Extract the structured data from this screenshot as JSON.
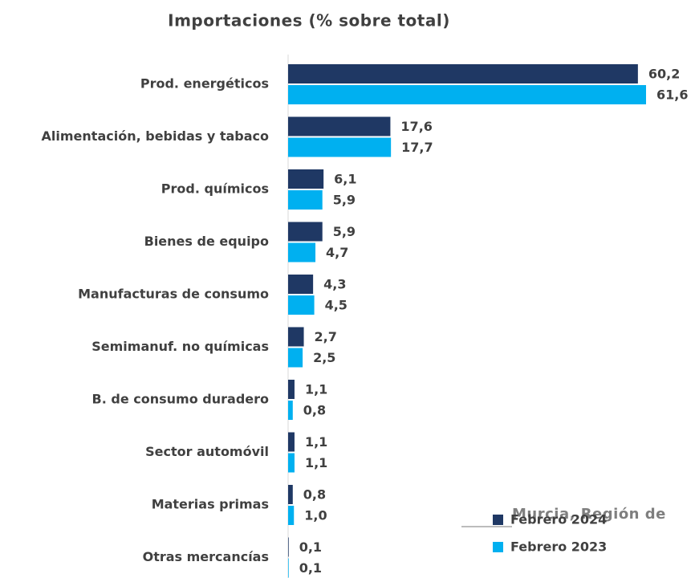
{
  "chart_data": {
    "type": "bar",
    "orientation": "horizontal",
    "title": "Importaciones (% sobre total)",
    "legend_title": "Murcia, Región de",
    "legend_position": "lower right",
    "categories": [
      "Prod. energéticos",
      "Alimentación, bebidas y tabaco",
      "Prod. químicos",
      "Bienes de equipo",
      "Manufacturas de consumo",
      "Semimanuf. no químicas",
      "B. de consumo duradero",
      "Sector automóvil",
      "Materias primas",
      "Otras mercancías"
    ],
    "series": [
      {
        "name": "Febrero 2024",
        "color": "#1f3864",
        "values": [
          60.2,
          17.6,
          6.1,
          5.9,
          4.3,
          2.7,
          1.1,
          1.1,
          0.8,
          0.1
        ],
        "value_labels": [
          "60,2",
          "17,6",
          "6,1",
          "5,9",
          "4,3",
          "2,7",
          "1,1",
          "1,1",
          "0,8",
          "0,1"
        ]
      },
      {
        "name": "Febrero 2023",
        "color": "#00b0f0",
        "values": [
          61.6,
          17.7,
          5.9,
          4.7,
          4.5,
          2.5,
          0.8,
          1.1,
          1.0,
          0.1
        ],
        "value_labels": [
          "61,6",
          "17,7",
          "5,9",
          "4,7",
          "4,5",
          "2,5",
          "0,8",
          "1,1",
          "1,0",
          "0,1"
        ]
      }
    ]
  }
}
